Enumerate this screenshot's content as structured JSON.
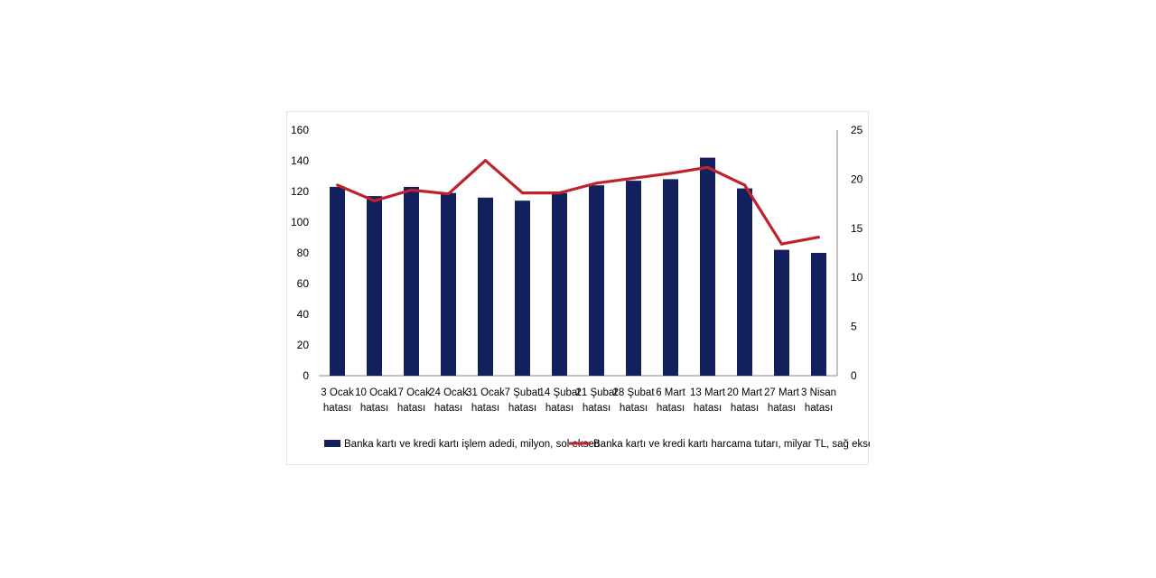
{
  "chart_data": {
    "type": "bar",
    "categories": [
      "3 Ocak hatası",
      "10 Ocak hatası",
      "17 Ocak hatası",
      "24 Ocak hatası",
      "31 Ocak hatası",
      "7 Şubat hatası",
      "14 Şubat hatası",
      "21 Şubat hatası",
      "28 Şubat hatası",
      "6 Mart hatası",
      "13 Mart hatası",
      "20 Mart hatası",
      "27 Mart hatası",
      "3 Nisan hatası"
    ],
    "category_lines": [
      [
        "3 Ocak",
        "hatası"
      ],
      [
        "10 Ocak",
        "hatası"
      ],
      [
        "17 Ocak",
        "hatası"
      ],
      [
        "24 Ocak",
        "hatası"
      ],
      [
        "31 Ocak",
        "hatası"
      ],
      [
        "7 Şubat",
        "hatası"
      ],
      [
        "14 Şubat",
        "hatası"
      ],
      [
        "21 Şubat",
        "hatası"
      ],
      [
        "28 Şubat",
        "hatası"
      ],
      [
        "6 Mart",
        "hatası"
      ],
      [
        "13 Mart",
        "hatası"
      ],
      [
        "20 Mart",
        "hatası"
      ],
      [
        "27 Mart",
        "hatası"
      ],
      [
        "3 Nisan",
        "hatası"
      ]
    ],
    "series": [
      {
        "name": "Banka kartı ve kredi kartı işlem adedi, milyon, sol eksen",
        "kind": "bar",
        "axis": "left",
        "color": "#12215e",
        "values": [
          123,
          117,
          123,
          119,
          116,
          114,
          119,
          124,
          127,
          128,
          142,
          122,
          82,
          80
        ]
      },
      {
        "name": "Banka kartı ve kredi kartı harcama tutarı, milyar TL, sağ eksen",
        "kind": "line",
        "axis": "right",
        "color": "#c0222c",
        "values": [
          19.4,
          17.8,
          18.9,
          18.5,
          21.9,
          18.6,
          18.6,
          19.6,
          20.1,
          20.6,
          21.2,
          19.4,
          13.4,
          14.1
        ]
      }
    ],
    "left_axis": {
      "min": 0,
      "max": 160,
      "ticks": [
        0,
        20,
        40,
        60,
        80,
        100,
        120,
        140,
        160
      ]
    },
    "right_axis": {
      "min": 0,
      "max": 25,
      "ticks": [
        0,
        5,
        10,
        15,
        20,
        25
      ]
    },
    "grid": false,
    "legend_position": "bottom"
  }
}
